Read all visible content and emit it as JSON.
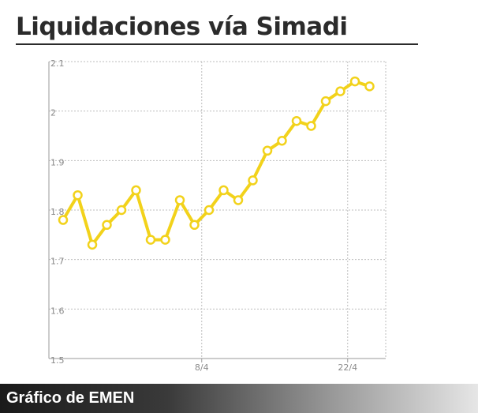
{
  "title": "Liquidaciones vía Simadi",
  "footer": {
    "label": "Gráfico de EMEN"
  },
  "colors": {
    "line": "#f2d21b",
    "grid": "#bdbdbd",
    "axis": "#9a9a9a",
    "footer_start": "#1a1a1a",
    "footer_end": "#e6e6e6"
  },
  "chart_data": {
    "type": "line",
    "title": "",
    "xlabel": "",
    "ylabel": "",
    "ylim": [
      1.5,
      2.1
    ],
    "yticks": [
      1.5,
      1.6,
      1.7,
      1.8,
      1.9,
      2,
      2.1
    ],
    "ytick_labels": [
      "1.5",
      "1.6",
      "1.7",
      "1.8",
      "1.9",
      "2",
      "2.1"
    ],
    "xticks": [
      {
        "label": "8/4",
        "index": 9.5
      },
      {
        "label": "22/4",
        "index": 19.5
      }
    ],
    "grid": true,
    "series": [
      {
        "values": [
          1.78,
          1.83,
          1.73,
          1.77,
          1.8,
          1.84,
          1.74,
          1.74,
          1.82,
          1.77,
          1.8,
          1.84,
          1.82,
          1.86,
          1.92,
          1.94,
          1.98,
          1.97,
          2.02,
          2.04,
          2.06,
          2.05
        ]
      }
    ]
  }
}
